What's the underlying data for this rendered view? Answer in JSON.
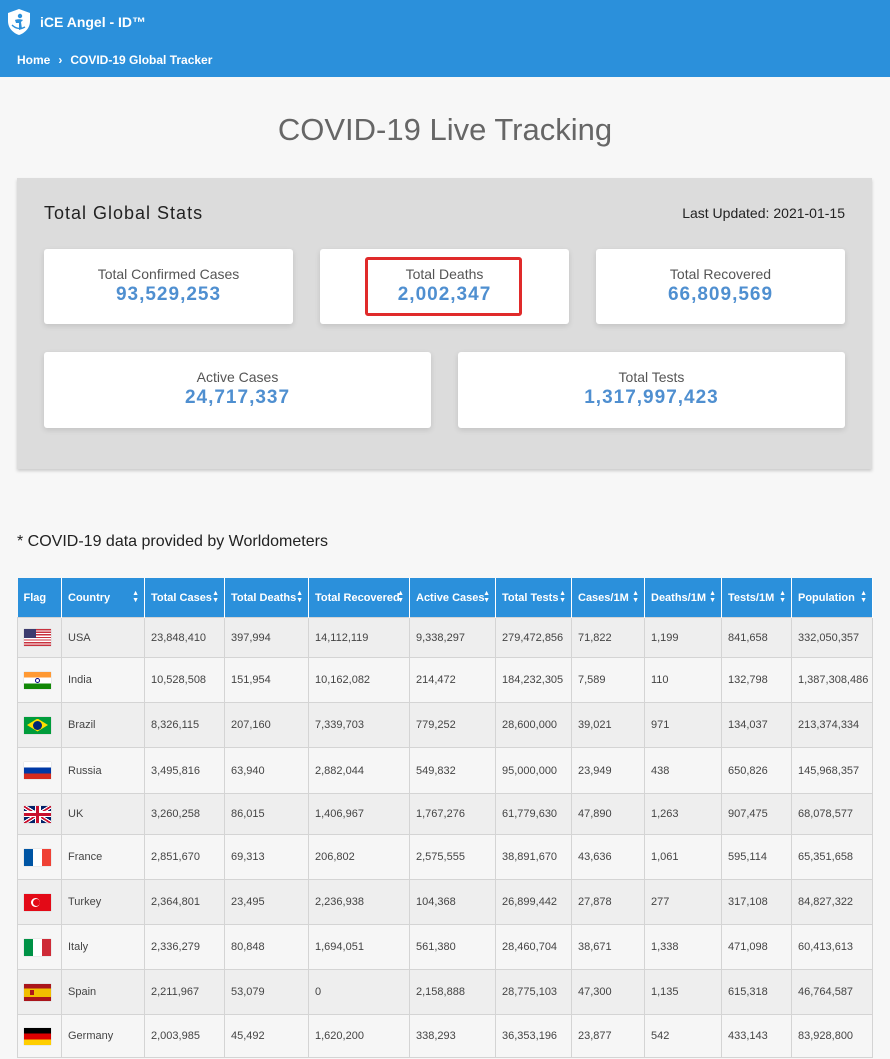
{
  "header": {
    "brand_title": "iCE Angel - ID™",
    "breadcrumb": {
      "home": "Home",
      "separator": "›",
      "current": "COVID-19 Global Tracker"
    }
  },
  "page": {
    "title": "COVID-19 Live Tracking"
  },
  "global_stats": {
    "heading": "Total Global Stats",
    "last_updated_label": "Last Updated:",
    "last_updated_value": "2021-01-15",
    "cards": {
      "confirmed": {
        "label": "Total Confirmed Cases",
        "value": "93,529,253"
      },
      "deaths": {
        "label": "Total Deaths",
        "value": "2,002,347",
        "highlighted": true
      },
      "recovered": {
        "label": "Total Recovered",
        "value": "66,809,569"
      },
      "active": {
        "label": "Active Cases",
        "value": "24,717,337"
      },
      "tests": {
        "label": "Total Tests",
        "value": "1,317,997,423"
      }
    }
  },
  "source_note": "* COVID-19 data provided by Worldometers",
  "table": {
    "columns": [
      "Flag",
      "Country",
      "Total Cases",
      "Total Deaths",
      "Total Recovered",
      "Active Cases",
      "Total Tests",
      "Cases/1M",
      "Deaths/1M",
      "Tests/1M",
      "Population"
    ],
    "rows": [
      {
        "flag": "usa",
        "country": "USA",
        "total_cases": "23,848,410",
        "total_deaths": "397,994",
        "total_recovered": "14,112,119",
        "active_cases": "9,338,297",
        "total_tests": "279,472,856",
        "cases_1m": "71,822",
        "deaths_1m": "1,199",
        "tests_1m": "841,658",
        "population": "332,050,357"
      },
      {
        "flag": "india",
        "country": "India",
        "total_cases": "10,528,508",
        "total_deaths": "151,954",
        "total_recovered": "10,162,082",
        "active_cases": "214,472",
        "total_tests": "184,232,305",
        "cases_1m": "7,589",
        "deaths_1m": "110",
        "tests_1m": "132,798",
        "population": "1,387,308,486"
      },
      {
        "flag": "brazil",
        "country": "Brazil",
        "total_cases": "8,326,115",
        "total_deaths": "207,160",
        "total_recovered": "7,339,703",
        "active_cases": "779,252",
        "total_tests": "28,600,000",
        "cases_1m": "39,021",
        "deaths_1m": "971",
        "tests_1m": "134,037",
        "population": "213,374,334"
      },
      {
        "flag": "russia",
        "country": "Russia",
        "total_cases": "3,495,816",
        "total_deaths": "63,940",
        "total_recovered": "2,882,044",
        "active_cases": "549,832",
        "total_tests": "95,000,000",
        "cases_1m": "23,949",
        "deaths_1m": "438",
        "tests_1m": "650,826",
        "population": "145,968,357"
      },
      {
        "flag": "uk",
        "country": "UK",
        "total_cases": "3,260,258",
        "total_deaths": "86,015",
        "total_recovered": "1,406,967",
        "active_cases": "1,767,276",
        "total_tests": "61,779,630",
        "cases_1m": "47,890",
        "deaths_1m": "1,263",
        "tests_1m": "907,475",
        "population": "68,078,577"
      },
      {
        "flag": "france",
        "country": "France",
        "total_cases": "2,851,670",
        "total_deaths": "69,313",
        "total_recovered": "206,802",
        "active_cases": "2,575,555",
        "total_tests": "38,891,670",
        "cases_1m": "43,636",
        "deaths_1m": "1,061",
        "tests_1m": "595,114",
        "population": "65,351,658"
      },
      {
        "flag": "turkey",
        "country": "Turkey",
        "total_cases": "2,364,801",
        "total_deaths": "23,495",
        "total_recovered": "2,236,938",
        "active_cases": "104,368",
        "total_tests": "26,899,442",
        "cases_1m": "27,878",
        "deaths_1m": "277",
        "tests_1m": "317,108",
        "population": "84,827,322"
      },
      {
        "flag": "italy",
        "country": "Italy",
        "total_cases": "2,336,279",
        "total_deaths": "80,848",
        "total_recovered": "1,694,051",
        "active_cases": "561,380",
        "total_tests": "28,460,704",
        "cases_1m": "38,671",
        "deaths_1m": "1,338",
        "tests_1m": "471,098",
        "population": "60,413,613"
      },
      {
        "flag": "spain",
        "country": "Spain",
        "total_cases": "2,211,967",
        "total_deaths": "53,079",
        "total_recovered": "0",
        "active_cases": "2,158,888",
        "total_tests": "28,775,103",
        "cases_1m": "47,300",
        "deaths_1m": "1,135",
        "tests_1m": "615,318",
        "population": "46,764,587"
      },
      {
        "flag": "germany",
        "country": "Germany",
        "total_cases": "2,003,985",
        "total_deaths": "45,492",
        "total_recovered": "1,620,200",
        "active_cases": "338,293",
        "total_tests": "36,353,196",
        "cases_1m": "23,877",
        "deaths_1m": "542",
        "tests_1m": "433,143",
        "population": "83,928,800"
      }
    ]
  },
  "colors": {
    "header_bg": "#2b90db",
    "stat_value": "#4f8fd0",
    "highlight": "#e02a2a",
    "panel_bg": "#dcdcdc"
  }
}
